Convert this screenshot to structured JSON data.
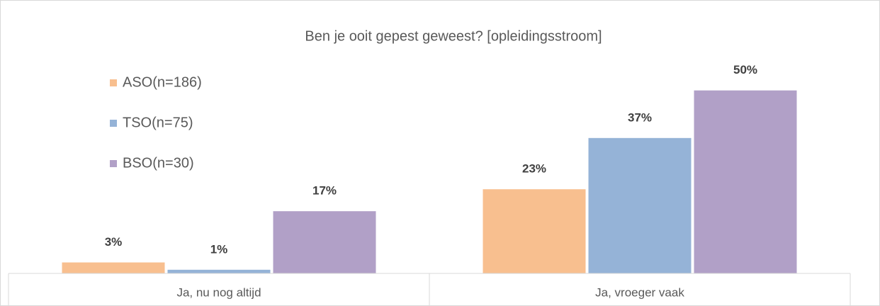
{
  "chart_data": {
    "type": "bar",
    "title": "Ben je ooit gepest geweest? [opleidingsstroom]",
    "categories": [
      "Ja, nu nog altijd",
      "Ja, vroeger vaak"
    ],
    "series": [
      {
        "name": "ASO(n=186)",
        "color": "#f8bf8f",
        "values": [
          3,
          23
        ],
        "value_labels": [
          "3%",
          "23%"
        ]
      },
      {
        "name": "TSO(n=75)",
        "color": "#95b3d7",
        "values": [
          1,
          37
        ],
        "value_labels": [
          "1%",
          "37%"
        ]
      },
      {
        "name": "BSO(n=30)",
        "color": "#b1a0c7",
        "values": [
          17,
          50
        ],
        "value_labels": [
          "17%",
          "50%"
        ]
      }
    ],
    "ylim": [
      0,
      60
    ],
    "legend": "upper left"
  }
}
